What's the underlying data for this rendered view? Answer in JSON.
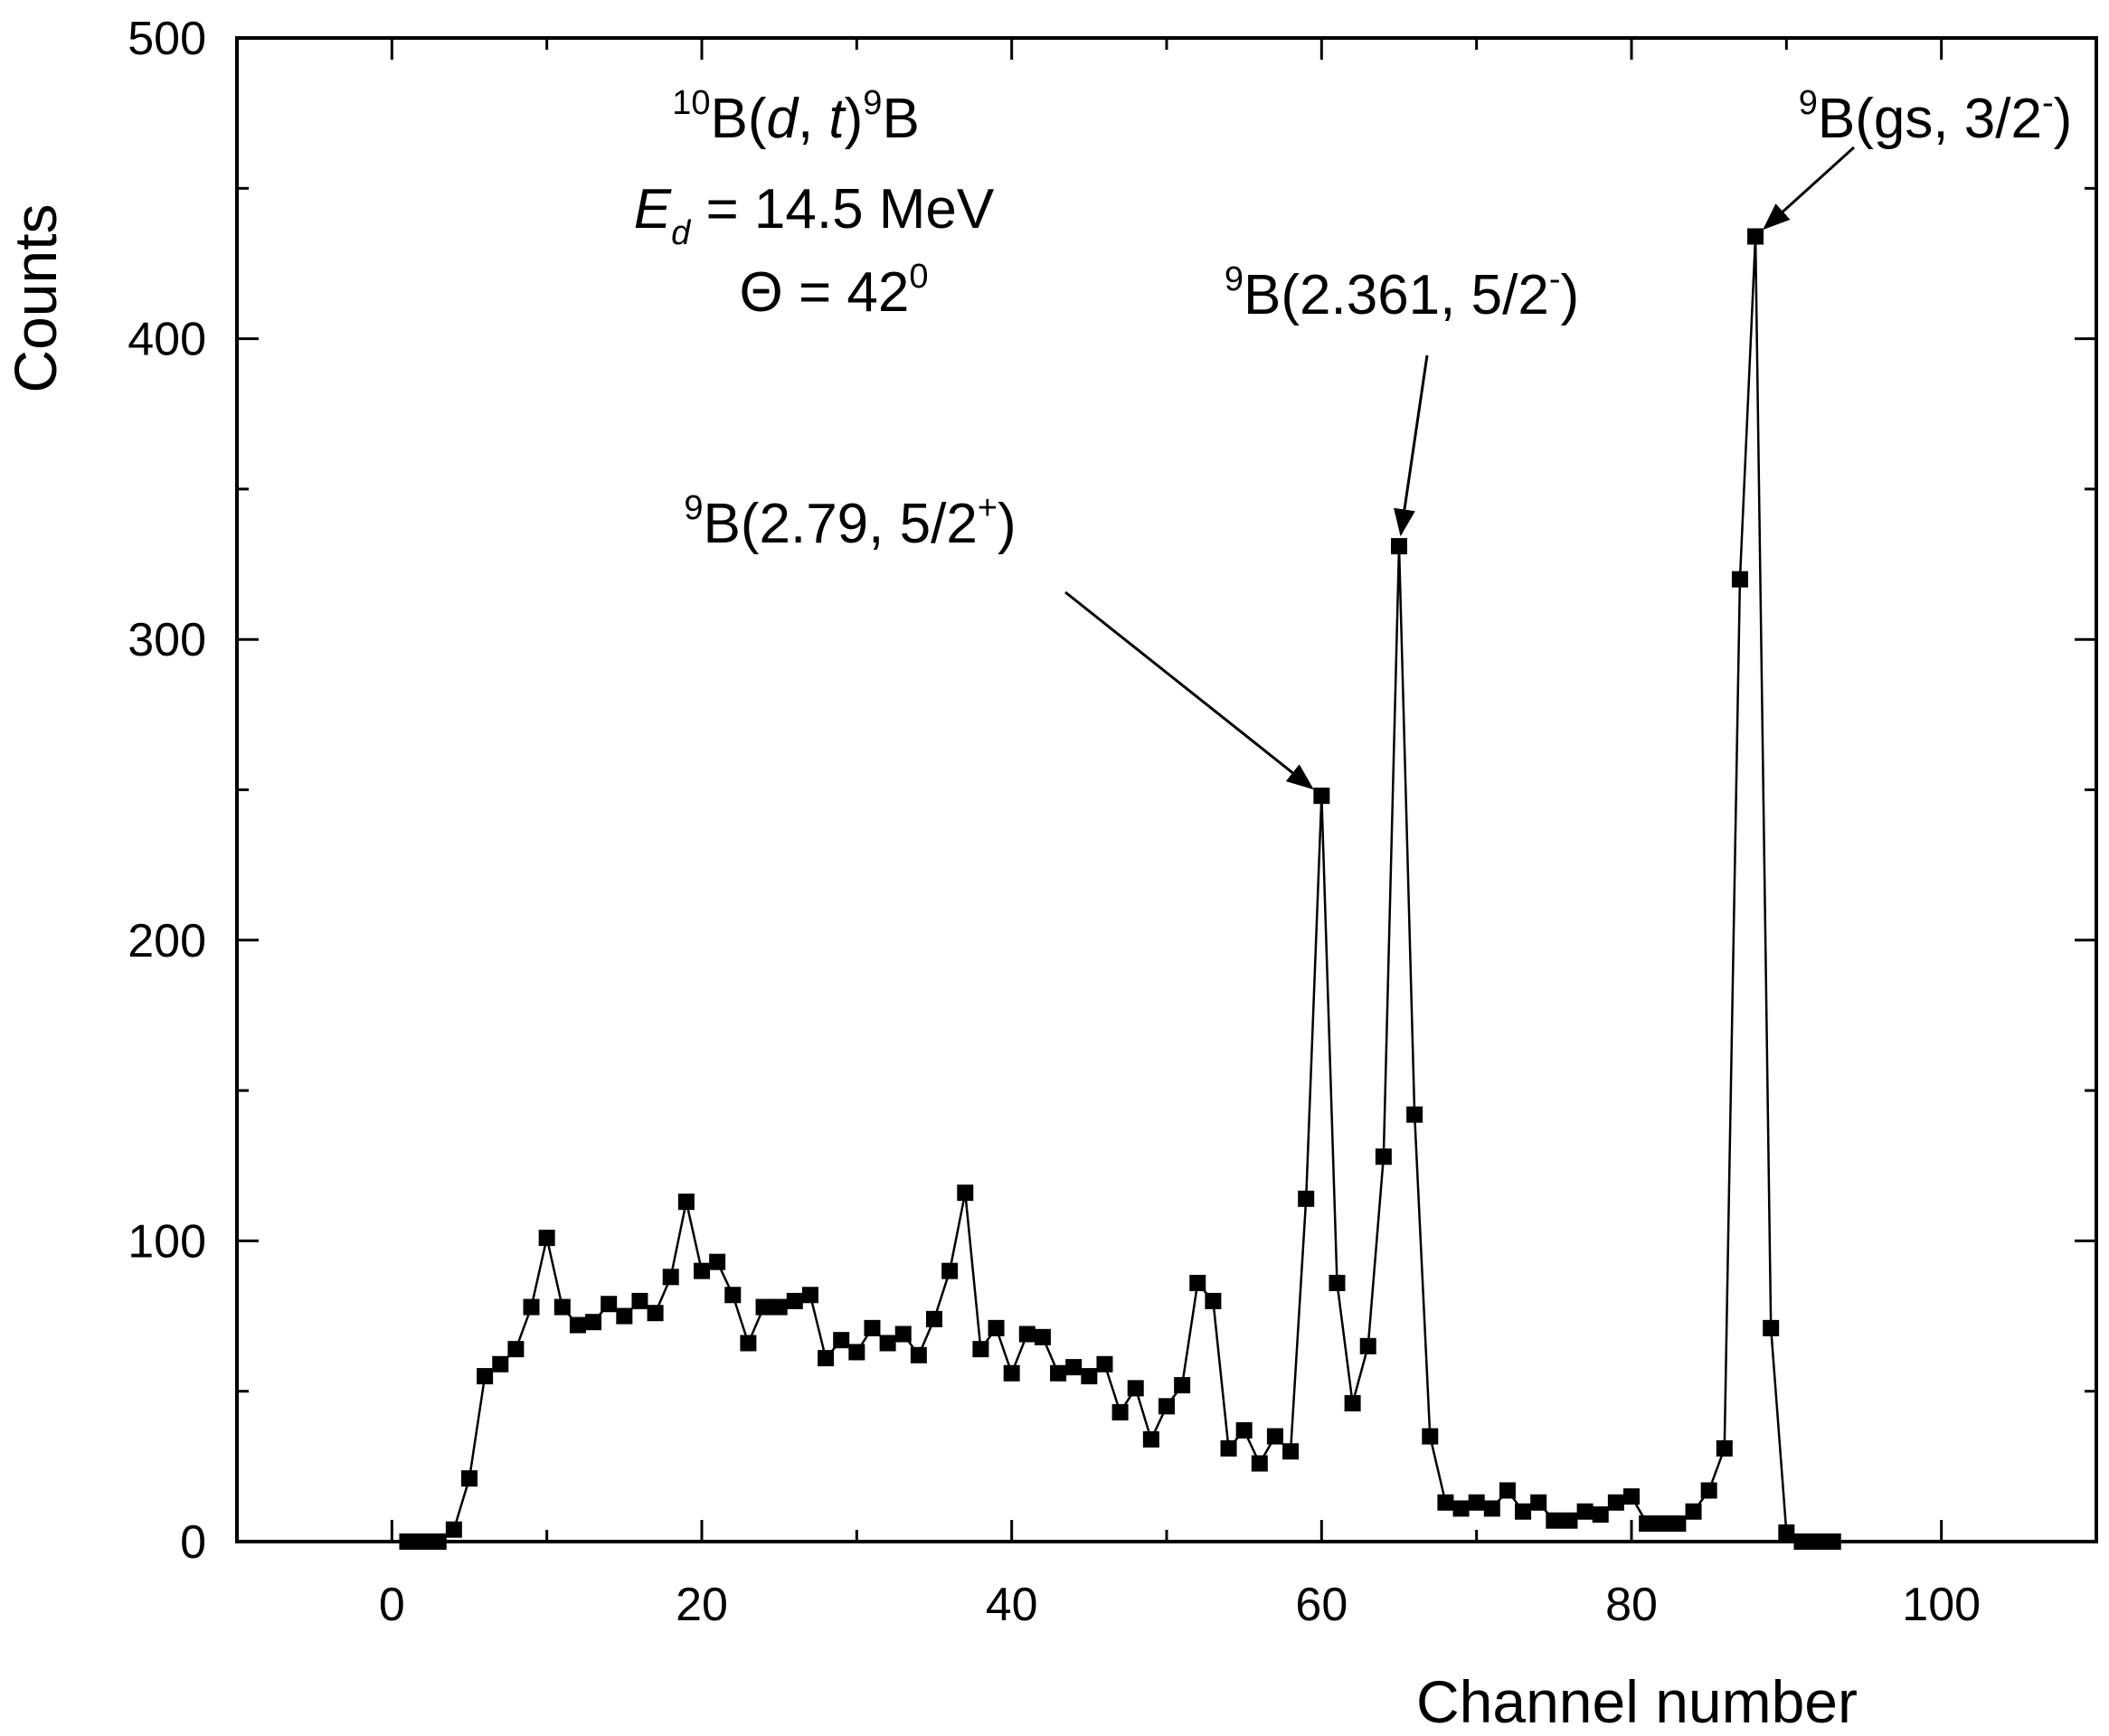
{
  "chart_data": {
    "type": "scatter",
    "xlabel": "Channel number",
    "ylabel": "Counts",
    "xlim": [
      -10,
      110
    ],
    "ylim": [
      0,
      500
    ],
    "x_ticks": [
      0,
      20,
      40,
      60,
      80,
      100
    ],
    "x_tick_labels": [
      "0",
      "20",
      "40",
      "60",
      "80",
      "100"
    ],
    "y_ticks": [
      0,
      100,
      200,
      300,
      400,
      500
    ],
    "y_tick_labels": [
      "0",
      "100",
      "200",
      "300",
      "400",
      "500"
    ],
    "grid": false,
    "legend": "none",
    "series_color": "#000000",
    "reaction_label": {
      "line1": {
        "pre_sup": "10",
        "a": "B(",
        "d": "d",
        "mid": ", ",
        "t": "t",
        "b": ")",
        "sup": "9",
        "c": "B"
      },
      "line2": {
        "E": "E",
        "sub": "d",
        "rest": " = 14.5 MeV"
      },
      "line3": {
        "text": "Θ = 42",
        "sup": "0"
      }
    },
    "annotations": [
      {
        "id": "gs",
        "sup_pre": "9",
        "text": "B(gs, 3/2",
        "sup_post": "-",
        "close": ")",
        "x": 88,
        "y": 434
      },
      {
        "id": "e2361",
        "sup_pre": "9",
        "text": "B(2.361, 5/2",
        "sup_post": "-",
        "close": ")",
        "x": 65,
        "y": 331
      },
      {
        "id": "e279",
        "sup_pre": "9",
        "text": "B(2.79, 5/2",
        "sup_post": "+",
        "close": ")",
        "x": 60,
        "y": 248
      }
    ],
    "points": [
      [
        1,
        0
      ],
      [
        2,
        0
      ],
      [
        3,
        0
      ],
      [
        4,
        4
      ],
      [
        5,
        21
      ],
      [
        6,
        55
      ],
      [
        7,
        59
      ],
      [
        8,
        64
      ],
      [
        9,
        78
      ],
      [
        10,
        101
      ],
      [
        11,
        78
      ],
      [
        12,
        72
      ],
      [
        13,
        73
      ],
      [
        14,
        79
      ],
      [
        15,
        75
      ],
      [
        16,
        80
      ],
      [
        17,
        76
      ],
      [
        18,
        88
      ],
      [
        19,
        113
      ],
      [
        20,
        90
      ],
      [
        21,
        93
      ],
      [
        22,
        82
      ],
      [
        23,
        66
      ],
      [
        24,
        78
      ],
      [
        25,
        78
      ],
      [
        26,
        80
      ],
      [
        27,
        82
      ],
      [
        28,
        61
      ],
      [
        29,
        67
      ],
      [
        30,
        63
      ],
      [
        31,
        71
      ],
      [
        32,
        66
      ],
      [
        33,
        69
      ],
      [
        34,
        62
      ],
      [
        35,
        74
      ],
      [
        36,
        90
      ],
      [
        37,
        116
      ],
      [
        38,
        64
      ],
      [
        39,
        71
      ],
      [
        40,
        56
      ],
      [
        41,
        69
      ],
      [
        42,
        68
      ],
      [
        43,
        56
      ],
      [
        44,
        58
      ],
      [
        45,
        55
      ],
      [
        46,
        59
      ],
      [
        47,
        43
      ],
      [
        48,
        51
      ],
      [
        49,
        34
      ],
      [
        50,
        45
      ],
      [
        51,
        52
      ],
      [
        52,
        86
      ],
      [
        53,
        80
      ],
      [
        54,
        31
      ],
      [
        55,
        37
      ],
      [
        56,
        26
      ],
      [
        57,
        35
      ],
      [
        58,
        30
      ],
      [
        59,
        114
      ],
      [
        60,
        248
      ],
      [
        61,
        86
      ],
      [
        62,
        46
      ],
      [
        63,
        65
      ],
      [
        64,
        128
      ],
      [
        65,
        331
      ],
      [
        66,
        142
      ],
      [
        67,
        35
      ],
      [
        68,
        13
      ],
      [
        69,
        11
      ],
      [
        70,
        13
      ],
      [
        71,
        11
      ],
      [
        72,
        17
      ],
      [
        73,
        10
      ],
      [
        74,
        13
      ],
      [
        75,
        7
      ],
      [
        76,
        7
      ],
      [
        77,
        10
      ],
      [
        78,
        9
      ],
      [
        79,
        13
      ],
      [
        80,
        15
      ],
      [
        81,
        6
      ],
      [
        82,
        6
      ],
      [
        83,
        6
      ],
      [
        84,
        10
      ],
      [
        85,
        17
      ],
      [
        86,
        31
      ],
      [
        87,
        320
      ],
      [
        88,
        434
      ],
      [
        89,
        71
      ],
      [
        90,
        3
      ],
      [
        91,
        0
      ],
      [
        92,
        0
      ],
      [
        93,
        0
      ]
    ]
  }
}
